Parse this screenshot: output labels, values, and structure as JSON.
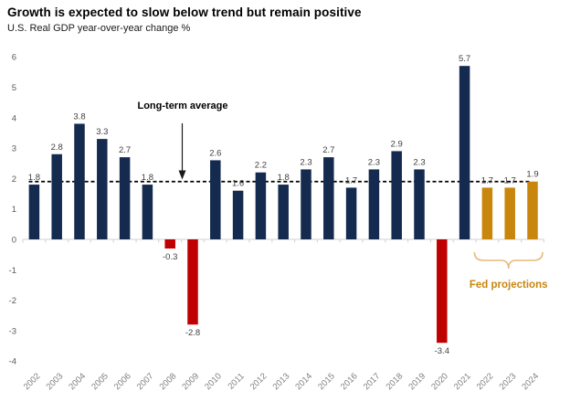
{
  "chart_data": {
    "type": "bar",
    "title": "Growth is expected to slow below trend but remain positive",
    "subtitle": "U.S. Real GDP year-over-year change %",
    "categories": [
      "2002",
      "2003",
      "2004",
      "2005",
      "2006",
      "2007",
      "2008",
      "2009",
      "2010",
      "2011",
      "2012",
      "2013",
      "2014",
      "2015",
      "2016",
      "2017",
      "2018",
      "2019",
      "2020",
      "2021",
      "2022",
      "2023",
      "2024"
    ],
    "values": [
      1.8,
      2.8,
      3.8,
      3.3,
      2.7,
      1.8,
      -0.3,
      -2.8,
      2.6,
      1.6,
      2.2,
      1.8,
      2.3,
      2.7,
      1.7,
      2.3,
      2.9,
      2.3,
      -3.4,
      5.7,
      1.7,
      1.7,
      1.9
    ],
    "point_groups": [
      "actual",
      "actual",
      "actual",
      "actual",
      "actual",
      "actual",
      "recession",
      "recession",
      "actual",
      "actual",
      "actual",
      "actual",
      "actual",
      "actual",
      "actual",
      "actual",
      "actual",
      "actual",
      "recession",
      "actual",
      "projection",
      "projection",
      "projection"
    ],
    "group_colors": {
      "actual": "#152A4F",
      "recession": "#C00000",
      "projection": "#C8860D"
    },
    "xlabel": "",
    "ylabel": "",
    "ylim": [
      -4,
      6
    ],
    "ytick_step": 1,
    "yticks": [
      "6",
      "5",
      "4",
      "3",
      "2",
      "1",
      "0",
      "-1",
      "-2",
      "-3",
      "-4"
    ],
    "grid": false,
    "legend": "none",
    "value_label_decimals": 1,
    "reference_line": {
      "value": 1.9,
      "label": "Long-term average",
      "style": "dashed",
      "color": "#000000"
    },
    "annotations": {
      "fed_projections": "Fed projections",
      "projection_years": [
        "2022",
        "2023",
        "2024"
      ]
    },
    "colors": {
      "axis_line": "#D9D9D9",
      "ytick_label": "#595959",
      "year_label": "#7F7F7F",
      "value_label": "#404040",
      "brace": "#E7BA79",
      "fed_label": "#C8860D"
    }
  }
}
